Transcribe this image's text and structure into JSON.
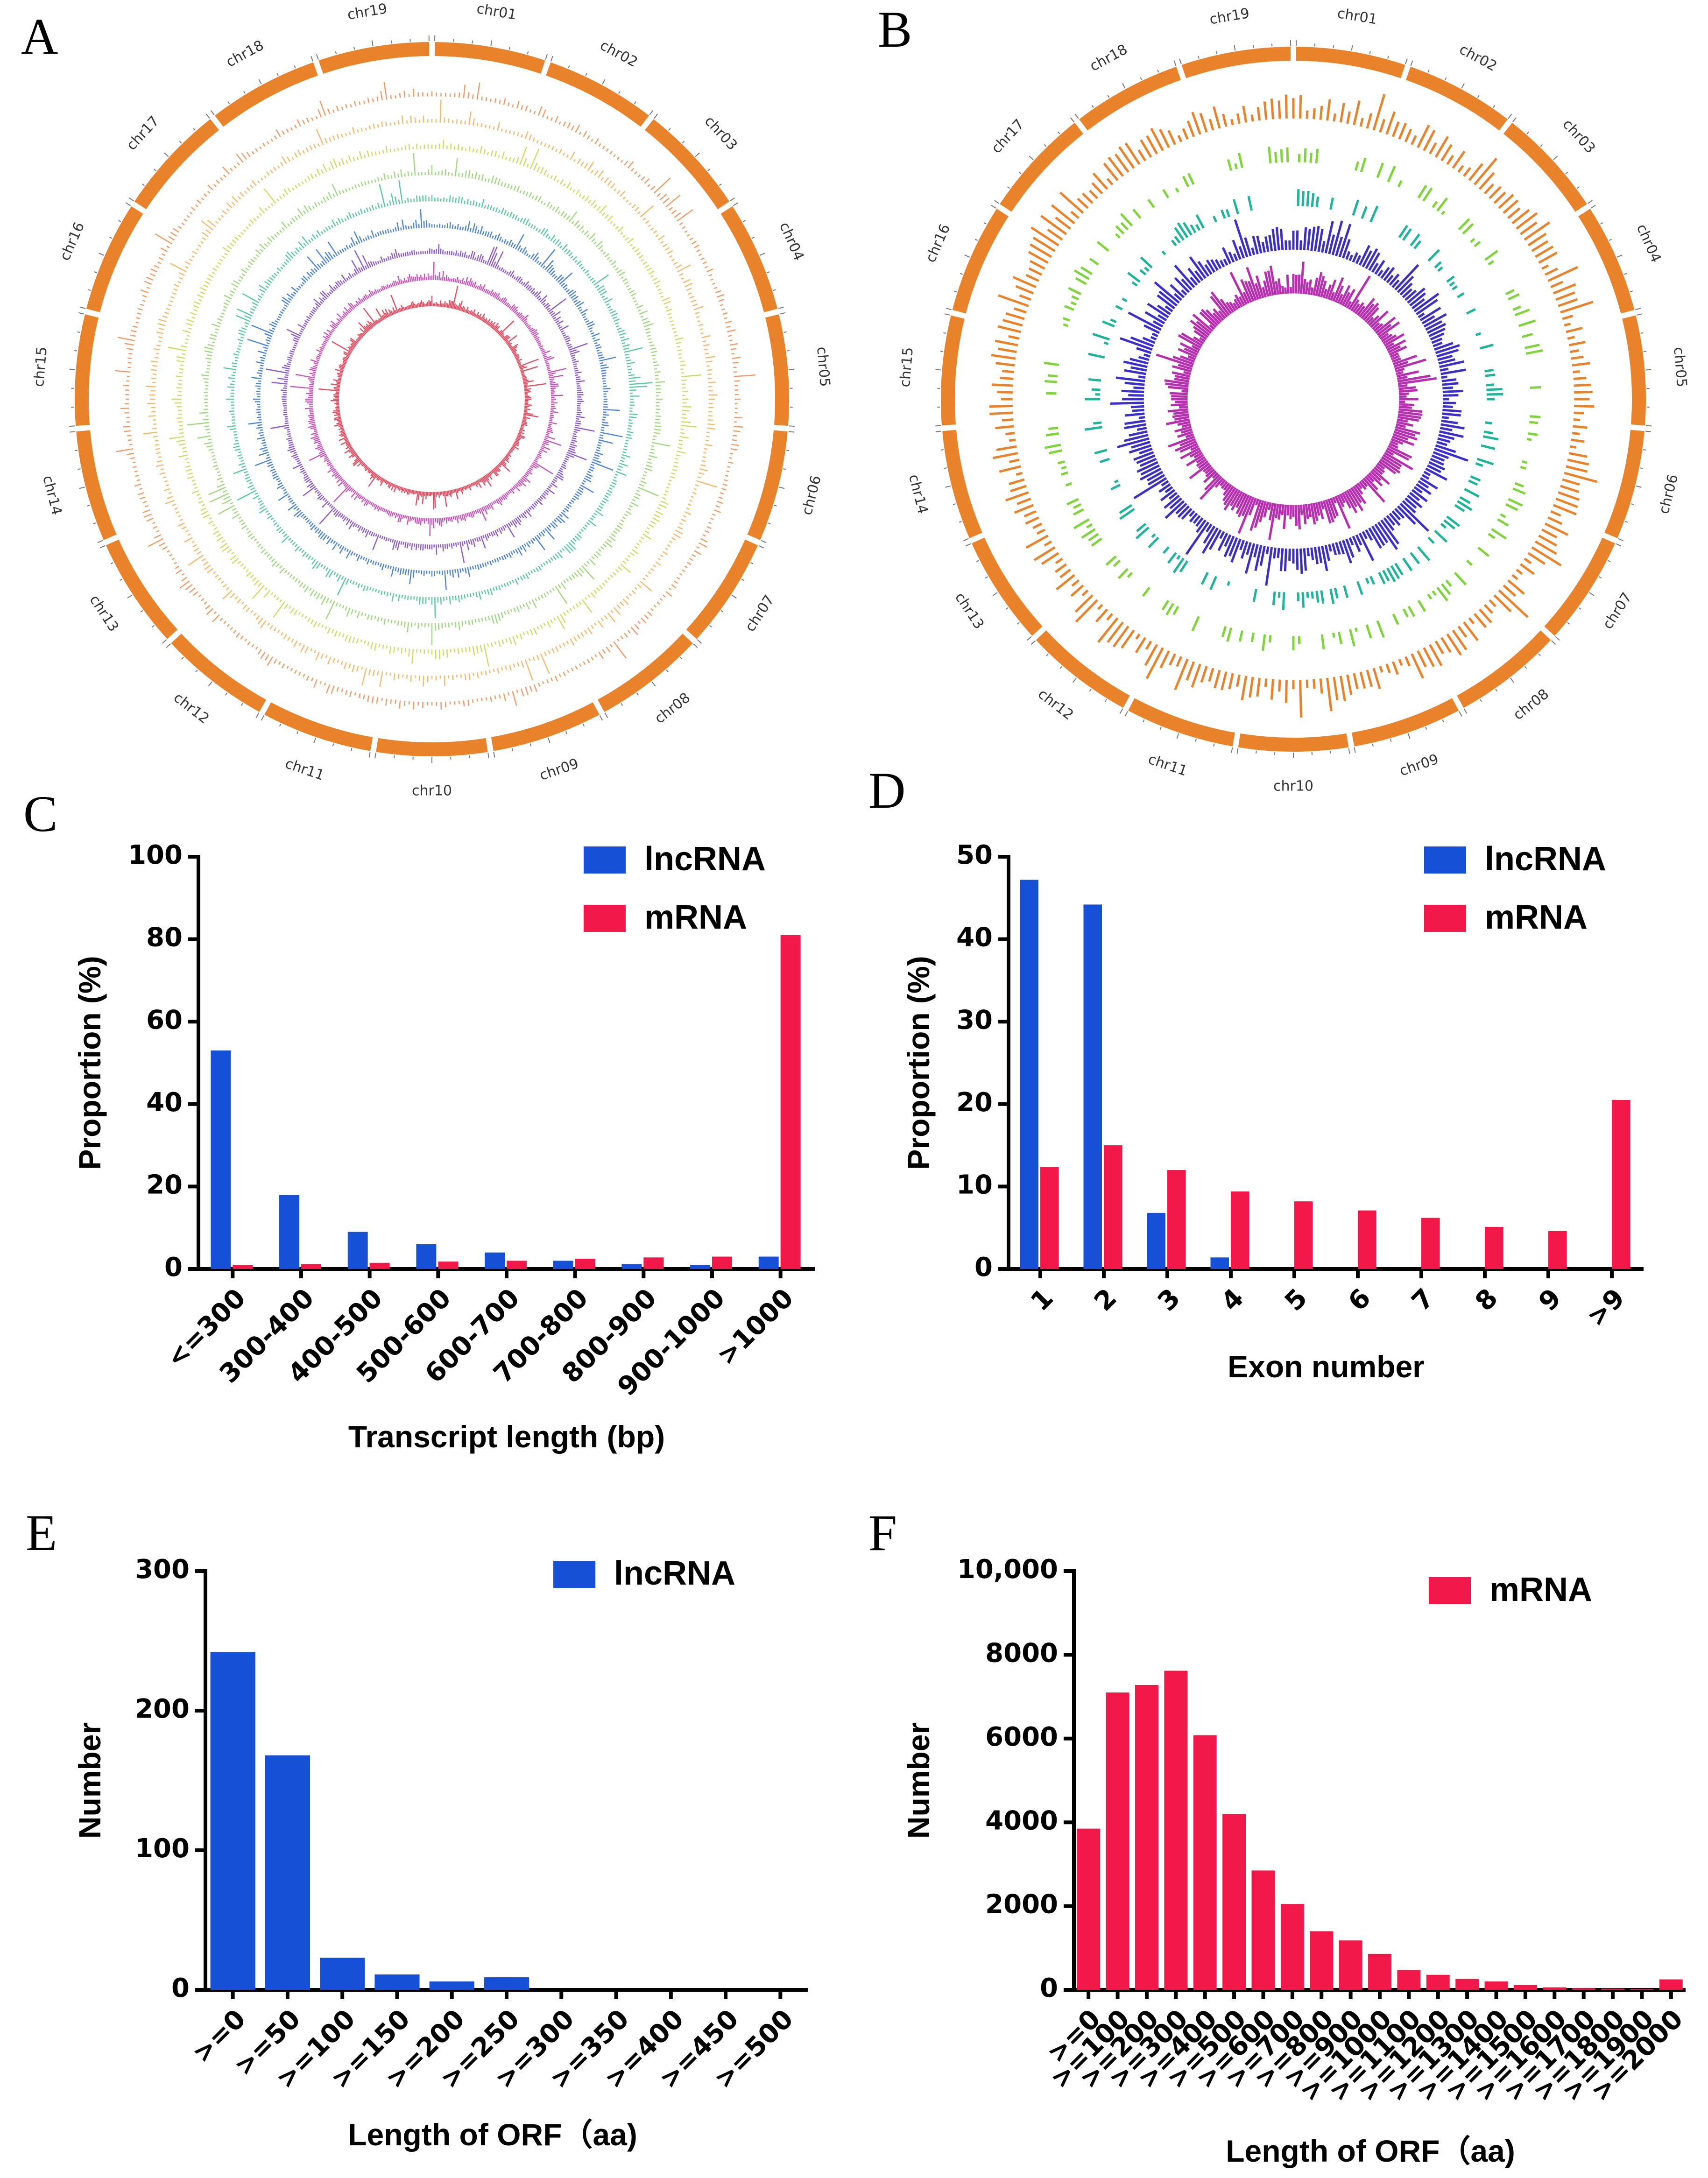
{
  "panels": {
    "A": "A",
    "B": "B",
    "C": "C",
    "D": "D",
    "E": "E",
    "F": "F"
  },
  "circos": {
    "chromosomes": [
      "chr01",
      "chr02",
      "chr03",
      "chr04",
      "chr05",
      "chr06",
      "chr07",
      "chr08",
      "chr09",
      "chr10",
      "chr11",
      "chr12",
      "chr13",
      "chr14",
      "chr15",
      "chr16",
      "chr17",
      "chr18",
      "chr19"
    ],
    "chr_color": "#E8822B",
    "panelA_track_colors": [
      "#EE8A4E",
      "#F4AE55",
      "#C6D64A",
      "#8ED16A",
      "#3FBF8F",
      "#2F6FD0",
      "#7A3FC8",
      "#C03AAE",
      "#D8344A"
    ],
    "panelB_track_colors": [
      "#E8822B",
      "#7ED43A",
      "#1FB39A",
      "#3B2FC9",
      "#B52FAF"
    ]
  },
  "chart_data": [
    {
      "panel": "C",
      "type": "bar",
      "categories": [
        "<=300",
        "300-400",
        "400-500",
        "500-600",
        "600-700",
        "700-800",
        "800-900",
        "900-1000",
        ">1000"
      ],
      "series": [
        {
          "name": "lncRNA",
          "color": "#1550D6",
          "values": [
            53,
            18,
            9,
            6,
            4,
            2,
            1.2,
            1,
            3
          ]
        },
        {
          "name": "mRNA",
          "color": "#F2184A",
          "values": [
            1,
            1.2,
            1.5,
            1.8,
            2,
            2.5,
            2.8,
            3,
            81
          ]
        }
      ],
      "xlabel": "Transcript length (bp)",
      "ylabel": "Proportion (%)",
      "ylim": [
        0,
        100
      ],
      "yticks": [
        "0",
        "20",
        "40",
        "60",
        "80",
        "100"
      ]
    },
    {
      "panel": "D",
      "type": "bar",
      "categories": [
        "1",
        "2",
        "3",
        "4",
        "5",
        "6",
        "7",
        "8",
        "9",
        ">9"
      ],
      "series": [
        {
          "name": "lncRNA",
          "color": "#1550D6",
          "values": [
            47.2,
            44.2,
            6.8,
            1.4,
            0,
            0,
            0,
            0,
            0,
            0
          ]
        },
        {
          "name": "mRNA",
          "color": "#F2184A",
          "values": [
            12.4,
            15,
            12,
            9.4,
            8.2,
            7.1,
            6.2,
            5.1,
            4.6,
            20.5
          ]
        }
      ],
      "xlabel": "Exon number",
      "ylabel": "Proportion (%)",
      "ylim": [
        0,
        50
      ],
      "yticks": [
        "0",
        "10",
        "20",
        "30",
        "40",
        "50"
      ]
    },
    {
      "panel": "E",
      "type": "bar",
      "categories": [
        ">=0",
        ">=50",
        ">=100",
        ">=150",
        ">=200",
        ">=250",
        ">=300",
        ">=350",
        ">=400",
        ">=450",
        ">=500"
      ],
      "series": [
        {
          "name": "lncRNA",
          "color": "#1550D6",
          "values": [
            242,
            168,
            23,
            11,
            6,
            9,
            0,
            0,
            0,
            0,
            0
          ]
        }
      ],
      "xlabel": "Length of ORF（aa)",
      "ylabel": "Number",
      "ylim": [
        0,
        300
      ],
      "yticks": [
        "0",
        "100",
        "200",
        "300"
      ]
    },
    {
      "panel": "F",
      "type": "bar",
      "categories": [
        ">=0",
        ">=100",
        ">=200",
        ">=300",
        ">=400",
        ">=500",
        ">=600",
        ">=700",
        ">=800",
        ">=900",
        ">=1000",
        ">=1100",
        ">=1200",
        ">=1300",
        ">=1400",
        ">=1500",
        ">=1600",
        ">=1700",
        ">=1800",
        ">=1900",
        ">=2000"
      ],
      "series": [
        {
          "name": "mRNA",
          "color": "#F2184A",
          "values": [
            3850,
            7100,
            7280,
            7620,
            6080,
            4200,
            2850,
            2050,
            1400,
            1180,
            860,
            480,
            360,
            260,
            200,
            120,
            60,
            40,
            30,
            20,
            250
          ]
        }
      ],
      "xlabel": "Length of ORF（aa)",
      "ylabel": "Number",
      "ylim": [
        0,
        10000
      ],
      "yticks": [
        "0",
        "2000",
        "4000",
        "6000",
        "8000",
        "10,000"
      ]
    }
  ]
}
